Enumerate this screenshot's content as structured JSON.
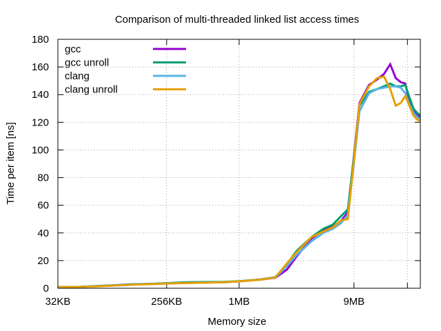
{
  "chart_data": {
    "type": "line",
    "title": "Comparison of multi-threaded linked list access times",
    "xlabel": "Memory size",
    "ylabel": "Time per item [ns]",
    "x_scale": "log2",
    "x_unit": "KB",
    "xlim": [
      32,
      32768
    ],
    "ylim": [
      0,
      180
    ],
    "y_ticks": [
      0,
      20,
      40,
      60,
      80,
      100,
      120,
      140,
      160,
      180
    ],
    "x_ticks": [
      {
        "value": 32,
        "label": "32KB"
      },
      {
        "value": 256,
        "label": "256KB"
      },
      {
        "value": 1024,
        "label": "1MB"
      },
      {
        "value": 9216,
        "label": "9MB"
      },
      {
        "value": 25600,
        "label": ""
      }
    ],
    "grid": true,
    "legend_position": "top-left",
    "x": [
      32,
      48,
      64,
      96,
      128,
      192,
      256,
      384,
      512,
      768,
      1024,
      1536,
      2048,
      2560,
      3072,
      4096,
      5120,
      6144,
      7168,
      8192,
      9216,
      10240,
      12288,
      14336,
      16384,
      18432,
      20480,
      22528,
      24576,
      26624,
      28672,
      30720,
      32768
    ],
    "series": [
      {
        "name": "gcc",
        "color": "#9400d3",
        "values": [
          0.8,
          1.0,
          1.5,
          2.2,
          2.8,
          3.2,
          3.6,
          3.9,
          4.1,
          4.4,
          5.0,
          6.3,
          7.6,
          13.5,
          23,
          36,
          42,
          44.5,
          48.5,
          55,
          96,
          134,
          147,
          151,
          155,
          162,
          152,
          149,
          148,
          135,
          128,
          125,
          124
        ]
      },
      {
        "name": "gcc unroll",
        "color": "#009e73",
        "values": [
          0.8,
          1.0,
          1.5,
          2.2,
          2.8,
          3.2,
          3.7,
          4.4,
          4.5,
          4.6,
          5.1,
          6.4,
          8.0,
          17.5,
          27,
          37,
          43,
          46,
          52,
          57,
          95,
          132,
          142,
          144,
          146,
          148,
          146,
          146,
          147,
          138,
          130,
          127,
          125
        ]
      },
      {
        "name": "clang",
        "color": "#56b4e9",
        "values": [
          0.8,
          1.0,
          1.4,
          2.0,
          2.6,
          3.1,
          3.5,
          3.9,
          4.1,
          4.4,
          5.0,
          6.2,
          7.8,
          16,
          24,
          34,
          40,
          43,
          47,
          53,
          91,
          128,
          141,
          144,
          145,
          146,
          146,
          145,
          141,
          133,
          127,
          124,
          122
        ]
      },
      {
        "name": "clang unroll",
        "color": "#e69f00",
        "values": [
          0.8,
          1.0,
          1.3,
          2.0,
          2.5,
          3.0,
          3.4,
          3.8,
          4.0,
          4.4,
          5.0,
          6.2,
          7.8,
          18,
          26,
          37,
          41,
          44,
          49,
          50,
          93,
          133,
          146,
          152,
          153,
          144,
          132,
          134,
          139,
          132,
          125,
          122,
          121
        ]
      }
    ]
  }
}
